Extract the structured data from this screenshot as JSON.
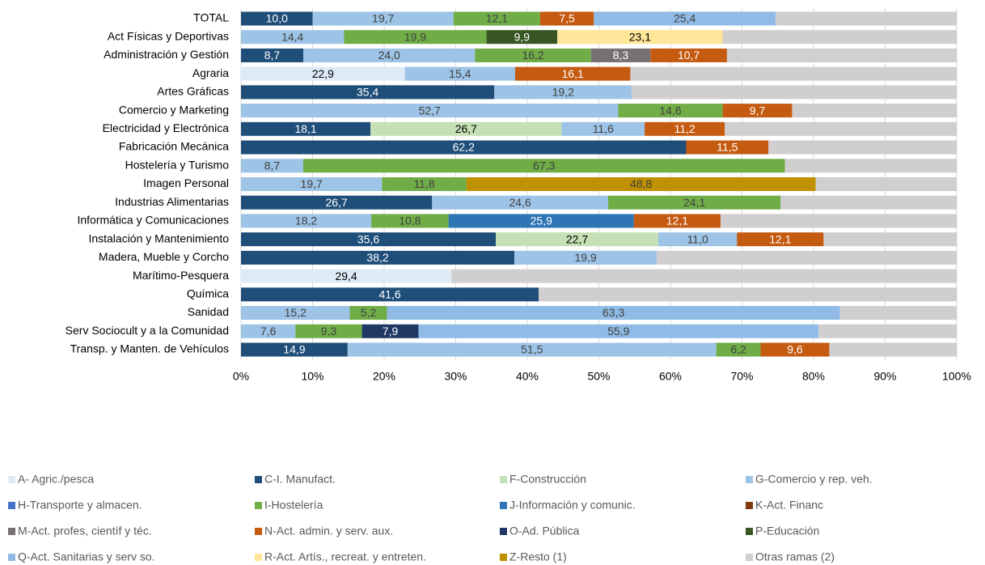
{
  "chart_data": {
    "type": "stacked_barh",
    "categories": [
      "TOTAL",
      "Act Físicas y Deportivas",
      "Administración y Gestión",
      "Agraria",
      "Artes Gráficas",
      "Comercio y Marketing",
      "Electricidad y Electrónica",
      "Fabricación Mecánica",
      "Hostelería y Turismo",
      "Imagen Personal",
      "Industrias Alimentarias",
      "Informática y Comunicaciones",
      "Instalación y Mantenimiento",
      "Madera, Mueble y Corcho",
      "Marítimo-Pesquera",
      "Química",
      "Sanidad",
      "Serv Sociocult y a la Comunidad",
      "Transp. y Manten. de Vehículos"
    ],
    "xlim": [
      0,
      100
    ],
    "xticks": [
      {
        "value": 0,
        "label": "0%"
      },
      {
        "value": 10,
        "label": "10%"
      },
      {
        "value": 20,
        "label": "20%"
      },
      {
        "value": 30,
        "label": "30%"
      },
      {
        "value": 40,
        "label": "40%"
      },
      {
        "value": 50,
        "label": "50%"
      },
      {
        "value": 60,
        "label": "60%"
      },
      {
        "value": 70,
        "label": "70%"
      },
      {
        "value": 80,
        "label": "80%"
      },
      {
        "value": 90,
        "label": "90%"
      },
      {
        "value": 100,
        "label": "100%"
      }
    ],
    "grid": true,
    "legend": "bottom",
    "series": [
      {
        "name": "A- Agric./pesca",
        "color": "#deebf7",
        "values": [
          null,
          null,
          null,
          22.9,
          null,
          null,
          null,
          null,
          null,
          null,
          null,
          null,
          null,
          null,
          29.4,
          null,
          null,
          null,
          null
        ],
        "value_labels": [
          null,
          null,
          null,
          "22,9",
          null,
          null,
          null,
          null,
          null,
          null,
          null,
          null,
          null,
          null,
          "29,4",
          null,
          null,
          null,
          null
        ]
      },
      {
        "name": "C-I. Manufact.",
        "color": "#1f4e79",
        "values": [
          10.0,
          null,
          8.7,
          null,
          35.4,
          null,
          18.1,
          62.2,
          null,
          null,
          26.7,
          null,
          35.6,
          38.2,
          null,
          41.6,
          null,
          null,
          14.9
        ],
        "value_labels": [
          "10,0",
          null,
          "8,7",
          null,
          "35,4",
          null,
          "18,1",
          "62,2",
          null,
          null,
          "26,7",
          null,
          "35,6",
          "38,2",
          null,
          "41,6",
          null,
          null,
          "14,9"
        ]
      },
      {
        "name": "F-Construcción",
        "color": "#c5e0b4",
        "values": [
          null,
          null,
          null,
          null,
          null,
          null,
          26.7,
          null,
          null,
          null,
          null,
          null,
          22.7,
          null,
          null,
          null,
          null,
          null,
          null
        ],
        "value_labels": [
          null,
          null,
          null,
          null,
          null,
          null,
          "26,7",
          null,
          null,
          null,
          null,
          null,
          "22,7",
          null,
          null,
          null,
          null,
          null,
          null
        ]
      },
      {
        "name": "G-Comercio y rep. veh.",
        "color": "#9dc3e6",
        "values": [
          19.7,
          14.4,
          24.0,
          15.4,
          19.2,
          52.7,
          11.6,
          null,
          8.7,
          19.7,
          24.6,
          18.2,
          11.0,
          19.9,
          null,
          null,
          15.2,
          7.6,
          51.5
        ],
        "value_labels": [
          "19,7",
          "14,4",
          "24,0",
          "15,4",
          "19,2",
          "52,7",
          "11,6",
          null,
          "8,7",
          "19,7",
          "24,6",
          "18,2",
          "11,0",
          "19,9",
          null,
          null,
          "15,2",
          "7,6",
          "51,5"
        ]
      },
      {
        "name": "H-Transporte y almacen.",
        "color": "#4472c4",
        "values": [
          null,
          null,
          null,
          null,
          null,
          null,
          null,
          null,
          null,
          null,
          null,
          null,
          null,
          null,
          null,
          null,
          null,
          null,
          null
        ]
      },
      {
        "name": "I-Hostelería",
        "color": "#70ad47",
        "values": [
          12.1,
          19.9,
          16.2,
          null,
          null,
          14.6,
          null,
          null,
          67.3,
          11.8,
          24.1,
          10.8,
          null,
          null,
          null,
          null,
          5.2,
          9.3,
          6.2
        ],
        "value_labels": [
          "12,1",
          "19,9",
          "16,2",
          null,
          null,
          "14,6",
          null,
          null,
          "67,3",
          "11,8",
          "24,1",
          "10,8",
          null,
          null,
          null,
          null,
          "5,2",
          "9,3",
          "6,2"
        ]
      },
      {
        "name": "J-Información y comunic.",
        "color": "#2e75b6",
        "values": [
          null,
          null,
          null,
          null,
          null,
          null,
          null,
          null,
          null,
          null,
          null,
          25.9,
          null,
          null,
          null,
          null,
          null,
          null,
          null
        ],
        "value_labels": [
          null,
          null,
          null,
          null,
          null,
          null,
          null,
          null,
          null,
          null,
          null,
          "25,9",
          null,
          null,
          null,
          null,
          null,
          null,
          null
        ]
      },
      {
        "name": "K-Act. Financ",
        "color": "#843c0c",
        "values": [
          null,
          null,
          null,
          null,
          null,
          null,
          null,
          null,
          null,
          null,
          null,
          null,
          null,
          null,
          null,
          null,
          null,
          null,
          null
        ]
      },
      {
        "name": "M-Act. profes, científ y téc.",
        "color": "#767171",
        "values": [
          null,
          null,
          8.3,
          null,
          null,
          null,
          null,
          null,
          null,
          null,
          null,
          null,
          null,
          null,
          null,
          null,
          null,
          null,
          null
        ],
        "value_labels": [
          null,
          null,
          "8,3",
          null,
          null,
          null,
          null,
          null,
          null,
          null,
          null,
          null,
          null,
          null,
          null,
          null,
          null,
          null,
          null
        ]
      },
      {
        "name": "N-Act. admin. y serv. aux.",
        "color": "#c55a11",
        "values": [
          7.5,
          null,
          10.7,
          16.1,
          null,
          9.7,
          11.2,
          11.5,
          null,
          null,
          null,
          12.1,
          12.1,
          null,
          null,
          null,
          null,
          null,
          9.6
        ],
        "value_labels": [
          "7,5",
          null,
          "10,7",
          "16,1",
          null,
          "9,7",
          "11,2",
          "11,5",
          null,
          null,
          null,
          "12,1",
          "12,1",
          null,
          null,
          null,
          null,
          null,
          "9,6"
        ]
      },
      {
        "name": "O-Ad. Pública",
        "color": "#203864",
        "values": [
          null,
          null,
          null,
          null,
          null,
          null,
          null,
          null,
          null,
          null,
          null,
          null,
          null,
          null,
          null,
          null,
          null,
          7.9,
          null
        ],
        "value_labels": [
          null,
          null,
          null,
          null,
          null,
          null,
          null,
          null,
          null,
          null,
          null,
          null,
          null,
          null,
          null,
          null,
          null,
          "7,9",
          null
        ]
      },
      {
        "name": "P-Educación",
        "color": "#375623",
        "values": [
          null,
          9.9,
          null,
          null,
          null,
          null,
          null,
          null,
          null,
          null,
          null,
          null,
          null,
          null,
          null,
          null,
          null,
          null,
          null
        ],
        "value_labels": [
          null,
          "9,9",
          null,
          null,
          null,
          null,
          null,
          null,
          null,
          null,
          null,
          null,
          null,
          null,
          null,
          null,
          null,
          null,
          null
        ]
      },
      {
        "name": "Q-Act. Sanitarias y serv so.",
        "color": "#8fbbe6",
        "values": [
          25.4,
          null,
          null,
          null,
          null,
          null,
          null,
          null,
          null,
          null,
          null,
          null,
          null,
          null,
          null,
          null,
          63.3,
          55.9,
          null
        ],
        "value_labels": [
          "25,4",
          null,
          null,
          null,
          null,
          null,
          null,
          null,
          null,
          null,
          null,
          null,
          null,
          null,
          null,
          null,
          "63,3",
          "55,9",
          null
        ]
      },
      {
        "name": "R-Act. Artís., recreat. y entreten.",
        "color": "#ffe699",
        "values": [
          null,
          23.1,
          null,
          null,
          null,
          null,
          null,
          null,
          null,
          null,
          null,
          null,
          null,
          null,
          null,
          null,
          null,
          null,
          null
        ],
        "value_labels": [
          null,
          "23,1",
          null,
          null,
          null,
          null,
          null,
          null,
          null,
          null,
          null,
          null,
          null,
          null,
          null,
          null,
          null,
          null,
          null
        ]
      },
      {
        "name": "Z-Resto (1)",
        "color": "#bf9000",
        "values": [
          null,
          null,
          null,
          null,
          null,
          null,
          null,
          null,
          null,
          48.8,
          null,
          null,
          null,
          null,
          null,
          null,
          null,
          null,
          null
        ],
        "value_labels": [
          null,
          null,
          null,
          null,
          null,
          null,
          null,
          null,
          null,
          "48,8",
          null,
          null,
          null,
          null,
          null,
          null,
          null,
          null,
          null
        ]
      },
      {
        "name": "Otras ramas (2)",
        "color": "#d0cece",
        "values": [
          25.3,
          32.7,
          32.1,
          45.6,
          45.4,
          23.0,
          32.4,
          26.3,
          24.0,
          19.7,
          24.6,
          33.0,
          18.6,
          41.9,
          70.6,
          58.4,
          16.3,
          19.3,
          17.8
        ]
      }
    ]
  }
}
